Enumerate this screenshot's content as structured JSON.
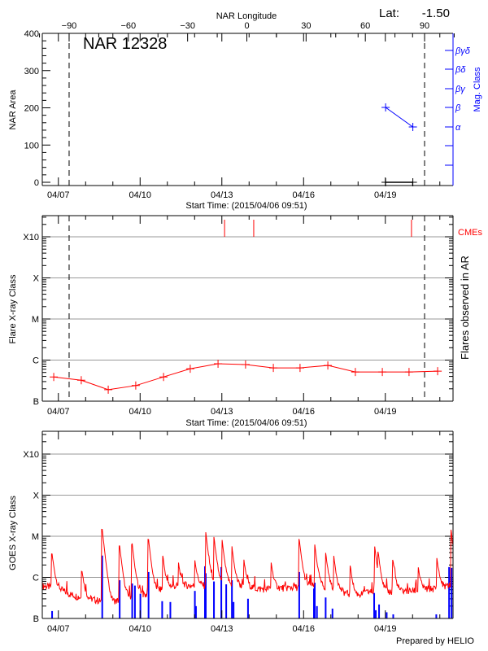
{
  "chart_data": [
    {
      "type": "line",
      "title": "NAR 12328",
      "latitude_label": "Lat:",
      "latitude_value": "-1.50",
      "top_axis_label": "NAR Longitude",
      "top_ticks": [
        -90,
        -60,
        -30,
        0,
        30,
        60,
        90
      ],
      "xlabel": "Start Time: (2015/04/06 09:51)",
      "x_tick_labels": [
        "04/07",
        "04/10",
        "04/13",
        "04/16",
        "04/19"
      ],
      "x_tick_days": [
        0.59,
        3.59,
        6.59,
        9.59,
        12.59
      ],
      "xlim_days": [
        0,
        15.07
      ],
      "ylabel": "NAR Area",
      "ylim": [
        0,
        400
      ],
      "y_ticks": [
        0,
        100,
        200,
        300,
        400
      ],
      "right_ylabel": "Mag. Class",
      "mag_class_ticks": [
        "α",
        "β",
        "βγ",
        "βδ",
        "βγδ"
      ],
      "limb_longitudes": [
        -90,
        90
      ],
      "area_series": {
        "days": [
          12.6,
          13.6
        ],
        "values": [
          0,
          0
        ]
      },
      "mag_class_series": {
        "days": [
          12.6,
          13.6
        ],
        "values": [
          "β",
          "α"
        ]
      },
      "colors": {
        "area": "#000000",
        "mag_class": "#0000ff"
      }
    },
    {
      "type": "line",
      "xlabel": "Start Time: (2015/04/06 09:51)",
      "x_tick_labels": [
        "04/07",
        "04/10",
        "04/13",
        "04/16",
        "04/19"
      ],
      "ylabel": "Flare X-ray Class",
      "right_ylabel": "Flares observed in AR",
      "y_class_labels": [
        "B",
        "C",
        "M",
        "X",
        "X10"
      ],
      "y_log_flux": [
        -7,
        -6,
        -5,
        -4,
        -3
      ],
      "ylim_log": [
        -7,
        -2.5
      ],
      "cme_label": "CMEs",
      "cme_days": [
        6.69,
        7.76,
        13.55
      ],
      "flare_series": {
        "days": [
          0.42,
          1.43,
          2.42,
          3.43,
          4.45,
          5.43,
          6.45,
          7.46,
          8.48,
          9.46,
          10.48,
          11.49,
          12.48,
          13.46,
          14.51
        ],
        "log_flux": [
          -6.41,
          -6.49,
          -6.72,
          -6.62,
          -6.41,
          -6.21,
          -6.09,
          -6.11,
          -6.19,
          -6.19,
          -6.13,
          -6.29,
          -6.29,
          -6.29,
          -6.27
        ]
      },
      "colors": {
        "flares": "#ff0000",
        "cme": "#ff0000"
      }
    },
    {
      "type": "line",
      "x_tick_labels": [
        "04/07",
        "04/10",
        "04/13",
        "04/16",
        "04/19"
      ],
      "ylabel": "GOES X-ray Class",
      "y_class_labels": [
        "B",
        "C",
        "M",
        "X",
        "X10"
      ],
      "ylim_log": [
        -7,
        -2.5
      ],
      "baseline": {
        "days": [
          0,
          0.5,
          1,
          1.5,
          2,
          2.5,
          3,
          3.5,
          4,
          4.5,
          5,
          6,
          7,
          8,
          9,
          10,
          11,
          11.5,
          12,
          13,
          14,
          15.07
        ],
        "log_flux": [
          -6.3,
          -6.35,
          -6.5,
          -6.6,
          -6.65,
          -6.75,
          -6.6,
          -6.55,
          -6.5,
          -6.35,
          -6.3,
          -6.3,
          -6.3,
          -6.38,
          -6.35,
          -6.3,
          -6.45,
          -6.55,
          -6.45,
          -6.45,
          -6.4,
          -6.3
        ]
      },
      "red_peaks": [
        [
          0.36,
          -5.51
        ],
        [
          1.46,
          -5.95
        ],
        [
          2.2,
          -4.84
        ],
        [
          2.84,
          -5.26
        ],
        [
          3.3,
          -5.22
        ],
        [
          3.9,
          -5.1
        ],
        [
          4.42,
          -5.55
        ],
        [
          5.0,
          -5.8
        ],
        [
          5.6,
          -5.7
        ],
        [
          6.0,
          -4.92
        ],
        [
          6.3,
          -5.06
        ],
        [
          6.6,
          -5.14
        ],
        [
          6.96,
          -5.32
        ],
        [
          7.4,
          -5.7
        ],
        [
          8.4,
          -5.75
        ],
        [
          9.43,
          -5.1
        ],
        [
          10.0,
          -5.25
        ],
        [
          10.4,
          -5.47
        ],
        [
          10.7,
          -5.57
        ],
        [
          11.3,
          -5.8
        ],
        [
          12.2,
          -5.28
        ],
        [
          12.33,
          -5.55
        ],
        [
          12.87,
          -5.65
        ],
        [
          13.8,
          -5.9
        ],
        [
          14.48,
          -5.61
        ],
        [
          15.0,
          -4.86
        ]
      ],
      "blue_spikes": [
        [
          0.36,
          -6.82
        ],
        [
          2.2,
          -5.47
        ],
        [
          2.84,
          -6.07
        ],
        [
          3.3,
          -6.15
        ],
        [
          3.4,
          -6.2
        ],
        [
          3.6,
          -6.4
        ],
        [
          3.9,
          -5.87
        ],
        [
          4.4,
          -6.58
        ],
        [
          4.7,
          -6.6
        ],
        [
          5.6,
          -6.33
        ],
        [
          5.64,
          -6.7
        ],
        [
          5.97,
          -5.73
        ],
        [
          6.0,
          -5.9
        ],
        [
          6.3,
          -6.1
        ],
        [
          6.57,
          -5.75
        ],
        [
          6.75,
          -6.17
        ],
        [
          6.96,
          -6.07
        ],
        [
          7.02,
          -6.6
        ],
        [
          7.55,
          -6.52
        ],
        [
          9.43,
          -5.87
        ],
        [
          9.97,
          -6.27
        ],
        [
          10.0,
          -6.13
        ],
        [
          10.08,
          -6.7
        ],
        [
          10.4,
          -6.49
        ],
        [
          10.65,
          -6.76
        ],
        [
          12.18,
          -6.38
        ],
        [
          12.24,
          -6.8
        ],
        [
          12.36,
          -6.66
        ],
        [
          12.64,
          -6.85
        ],
        [
          12.88,
          -6.9
        ],
        [
          14.46,
          -6.9
        ],
        [
          14.93,
          -5.75
        ],
        [
          15.02,
          -5.77
        ]
      ],
      "colors": {
        "long": "#ff0000",
        "short": "#0000ff"
      },
      "credit": "Prepared by HELIO"
    }
  ]
}
